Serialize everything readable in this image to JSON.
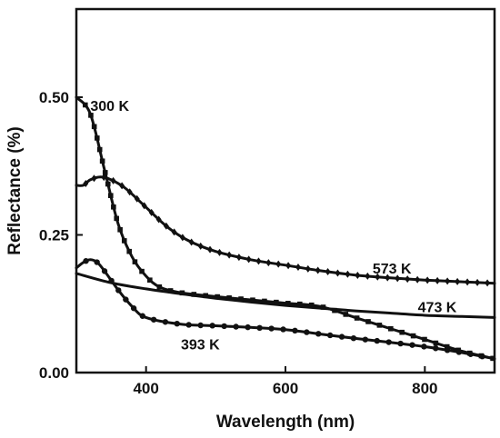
{
  "chart_data": {
    "type": "line",
    "title": "",
    "xlabel": "Wavelength (nm)",
    "ylabel": "Reflectance (%)",
    "xlim": [
      300,
      900
    ],
    "ylim": [
      0,
      0.66
    ],
    "xticks": [
      400,
      600,
      800
    ],
    "xtick_labels": [
      "400",
      "600",
      "800"
    ],
    "yticks": [
      0,
      0.25,
      0.5
    ],
    "ytick_labels": [
      "0.00",
      "0.25",
      "0.50"
    ],
    "grid": false,
    "legend": "none",
    "line_color": "#111111",
    "series": [
      {
        "name": "300 K",
        "marker": "square",
        "x": [
          300,
          320,
          340,
          360,
          380,
          400,
          420,
          450,
          500,
          550,
          600,
          650,
          700,
          750,
          800,
          850,
          900
        ],
        "y": [
          0.5,
          0.47,
          0.37,
          0.27,
          0.21,
          0.175,
          0.155,
          0.145,
          0.138,
          0.132,
          0.126,
          0.12,
          0.1,
          0.08,
          0.06,
          0.04,
          0.025
        ]
      },
      {
        "name": "393 K",
        "marker": "circle",
        "x": [
          300,
          310,
          320,
          330,
          340,
          360,
          380,
          400,
          450,
          500,
          550,
          600,
          650,
          700,
          750,
          800,
          850,
          900
        ],
        "y": [
          0.19,
          0.2,
          0.205,
          0.2,
          0.185,
          0.15,
          0.12,
          0.1,
          0.088,
          0.085,
          0.082,
          0.078,
          0.07,
          0.062,
          0.055,
          0.047,
          0.037,
          0.025
        ]
      },
      {
        "name": "473 K",
        "marker": "none",
        "x": [
          300,
          350,
          400,
          450,
          500,
          550,
          600,
          650,
          700,
          750,
          800,
          850,
          900
        ],
        "y": [
          0.18,
          0.163,
          0.152,
          0.143,
          0.135,
          0.128,
          0.122,
          0.117,
          0.112,
          0.108,
          0.104,
          0.102,
          0.1
        ]
      },
      {
        "name": "573 K",
        "marker": "diamond",
        "x": [
          300,
          310,
          320,
          335,
          350,
          370,
          400,
          430,
          460,
          500,
          550,
          600,
          650,
          700,
          750,
          800,
          850,
          900
        ],
        "y": [
          0.34,
          0.34,
          0.35,
          0.355,
          0.35,
          0.335,
          0.3,
          0.265,
          0.24,
          0.22,
          0.205,
          0.195,
          0.185,
          0.177,
          0.172,
          0.168,
          0.165,
          0.162
        ]
      }
    ],
    "annotations": [
      {
        "text": "300 K",
        "x": 320,
        "y": 0.475
      },
      {
        "text": "573 K",
        "x": 725,
        "y": 0.18
      },
      {
        "text": "473 K",
        "x": 790,
        "y": 0.11
      },
      {
        "text": "393 K",
        "x": 450,
        "y": 0.042
      }
    ]
  }
}
